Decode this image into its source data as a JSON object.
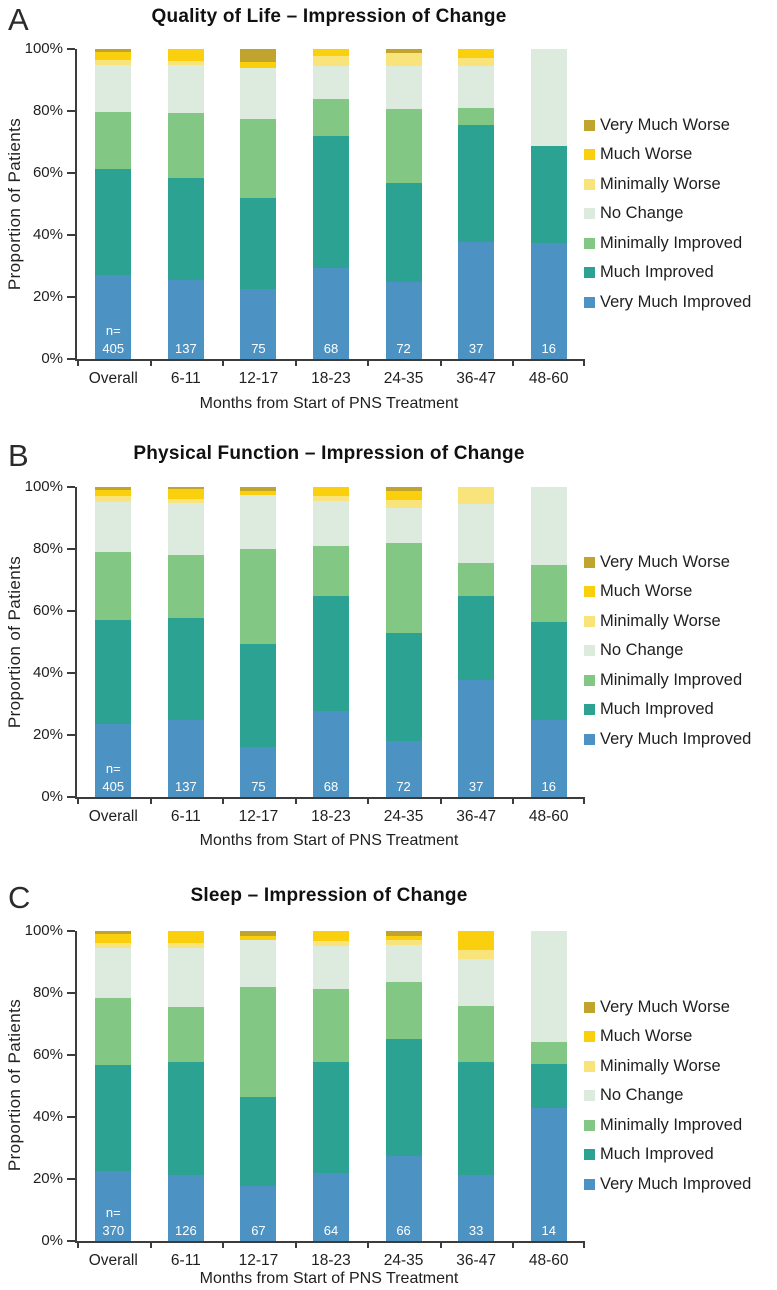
{
  "figure": {
    "y_axis_label": "Proportion of Patients",
    "x_axis_label": "Months from Start of PNS Treatment",
    "y_ticks": [
      "0%",
      "20%",
      "40%",
      "60%",
      "80%",
      "100%"
    ],
    "y_tick_values": [
      0,
      20,
      40,
      60,
      80,
      100
    ],
    "categories": [
      "Overall",
      "6-11",
      "12-17",
      "18-23",
      "24-35",
      "36-47",
      "48-60"
    ],
    "n_prefix": "n=",
    "legend": [
      {
        "label": "Very Much Worse",
        "color": "#C0A42E"
      },
      {
        "label": "Much Worse",
        "color": "#FAD00E"
      },
      {
        "label": "Minimally Worse",
        "color": "#F8E47B"
      },
      {
        "label": "No Change",
        "color": "#DCEBDD"
      },
      {
        "label": "Minimally Improved",
        "color": "#82C783"
      },
      {
        "label": "Much Improved",
        "color": "#2BA292"
      },
      {
        "label": "Very Much Improved",
        "color": "#4C93C4"
      }
    ]
  },
  "chart_data": [
    {
      "type": "bar",
      "stacked": true,
      "panel": "A",
      "title": "Quality of Life – Impression of Change",
      "xlabel": "Months from Start of PNS Treatment",
      "ylabel": "Proportion of Patients",
      "ylim": [
        0,
        100
      ],
      "categories": [
        "Overall",
        "6-11",
        "12-17",
        "18-23",
        "24-35",
        "36-47",
        "48-60"
      ],
      "n_values": [
        "405",
        "137",
        "75",
        "68",
        "72",
        "37",
        "16"
      ],
      "series": [
        {
          "name": "Very Much Improved",
          "values": [
            27.2,
            25.5,
            22.7,
            29.4,
            25.0,
            37.8,
            37.5
          ]
        },
        {
          "name": "Much Improved",
          "values": [
            34.1,
            32.8,
            29.3,
            42.6,
            31.9,
            37.8,
            31.3
          ]
        },
        {
          "name": "Minimally Improved",
          "values": [
            18.5,
            21.2,
            25.3,
            11.8,
            23.6,
            5.4,
            0
          ]
        },
        {
          "name": "No Change",
          "values": [
            15.1,
            15.3,
            16.7,
            10.8,
            13.9,
            13.5,
            31.2
          ]
        },
        {
          "name": "Minimally Worse",
          "values": [
            1.5,
            1.5,
            0,
            3.2,
            4.2,
            2.7,
            0
          ]
        },
        {
          "name": "Much Worse",
          "values": [
            2.5,
            3.7,
            1.7,
            2.2,
            0,
            2.8,
            0
          ]
        },
        {
          "name": "Very Much Worse",
          "values": [
            1.1,
            0,
            4.3,
            0,
            1.4,
            0,
            0
          ]
        }
      ]
    },
    {
      "type": "bar",
      "stacked": true,
      "panel": "B",
      "title": "Physical Function – Impression of Change",
      "xlabel": "Months from Start of PNS Treatment",
      "ylabel": "Proportion of Patients",
      "ylim": [
        0,
        100
      ],
      "categories": [
        "Overall",
        "6-11",
        "12-17",
        "18-23",
        "24-35",
        "36-47",
        "48-60"
      ],
      "n_values": [
        "405",
        "137",
        "75",
        "68",
        "72",
        "37",
        "16"
      ],
      "series": [
        {
          "name": "Very Much Improved",
          "values": [
            23.5,
            24.8,
            16.0,
            27.9,
            18.1,
            37.8,
            25.0
          ]
        },
        {
          "name": "Much Improved",
          "values": [
            33.6,
            32.8,
            33.3,
            36.8,
            34.7,
            27.0,
            31.3
          ]
        },
        {
          "name": "Minimally Improved",
          "values": [
            22.0,
            20.4,
            30.7,
            16.2,
            29.2,
            10.8,
            18.7
          ]
        },
        {
          "name": "No Change",
          "values": [
            16.0,
            16.8,
            17.3,
            14.7,
            11.1,
            18.9,
            25.0
          ]
        },
        {
          "name": "Minimally Worse",
          "values": [
            1.9,
            1.5,
            0,
            1.5,
            2.8,
            5.5,
            0
          ]
        },
        {
          "name": "Much Worse",
          "values": [
            1.9,
            3.0,
            1.4,
            2.9,
            2.7,
            0,
            0
          ]
        },
        {
          "name": "Very Much Worse",
          "values": [
            1.1,
            0.7,
            1.3,
            0,
            1.4,
            0,
            0
          ]
        }
      ]
    },
    {
      "type": "bar",
      "stacked": true,
      "panel": "C",
      "title": "Sleep – Impression of Change",
      "xlabel": "Months from Start of PNS Treatment",
      "ylabel": "Proportion of Patients",
      "ylim": [
        0,
        100
      ],
      "categories": [
        "Overall",
        "6-11",
        "12-17",
        "18-23",
        "24-35",
        "36-47",
        "48-60"
      ],
      "n_values": [
        "370",
        "126",
        "67",
        "64",
        "66",
        "33",
        "14"
      ],
      "series": [
        {
          "name": "Very Much Improved",
          "values": [
            22.7,
            21.4,
            17.9,
            21.9,
            27.3,
            21.2,
            42.9
          ]
        },
        {
          "name": "Much Improved",
          "values": [
            34.1,
            36.5,
            28.4,
            35.9,
            37.9,
            36.4,
            14.3
          ]
        },
        {
          "name": "Minimally Improved",
          "values": [
            21.6,
            17.5,
            35.8,
            23.4,
            18.2,
            18.2,
            7.1
          ]
        },
        {
          "name": "No Change",
          "values": [
            16.2,
            19.0,
            14.9,
            14.1,
            12.1,
            15.1,
            35.7
          ]
        },
        {
          "name": "Minimally Worse",
          "values": [
            1.6,
            1.6,
            0,
            1.6,
            1.5,
            3.0,
            0
          ]
        },
        {
          "name": "Much Worse",
          "values": [
            2.7,
            4.0,
            1.5,
            3.1,
            1.5,
            6.1,
            0
          ]
        },
        {
          "name": "Very Much Worse",
          "values": [
            1.1,
            0,
            1.5,
            0,
            1.5,
            0,
            0
          ]
        }
      ]
    }
  ]
}
